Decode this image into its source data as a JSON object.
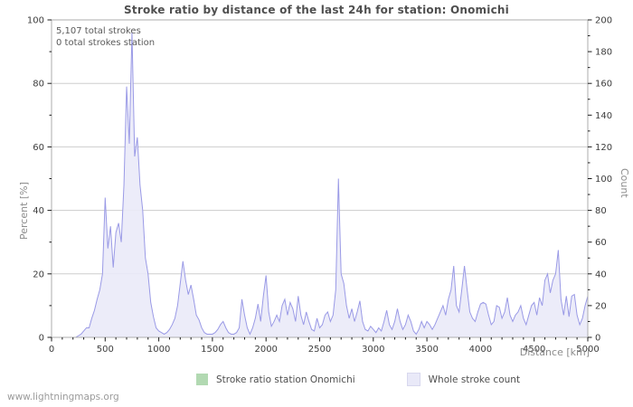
{
  "page": {
    "footer": "www.lightningmaps.org"
  },
  "chart_data": {
    "type": "area",
    "title": "Stroke ratio by distance of the last 24h for station: Onomichi",
    "annotations": {
      "total": "5,107 total strokes",
      "station": "0 total strokes station"
    },
    "colors": {
      "line": "#9a9ae6",
      "fill": "#eaeaf8",
      "grid": "#cdcdcd",
      "border": "#aeaeae",
      "tick": "#1a1a1a",
      "ratio_green": "#b2d9b2",
      "count_purple": "#e9e9f8"
    },
    "grid": "horizontal",
    "legend_position": "bottom",
    "x_axis": {
      "label": "Distance  [km]",
      "min": 0,
      "max": 5000,
      "major_ticks": [
        0,
        500,
        1000,
        1500,
        2000,
        2500,
        3000,
        3500,
        4000,
        4500,
        5000
      ],
      "minor_step": 100
    },
    "y_left": {
      "label": "Percent  [%]",
      "min": 0,
      "max": 100,
      "major_ticks": [
        0,
        20,
        40,
        60,
        80,
        100
      ],
      "minor_step": 10,
      "gridlines": [
        20,
        40,
        60,
        80
      ]
    },
    "y_right": {
      "label": "Count",
      "min": 0,
      "max": 200,
      "major_ticks": [
        0,
        20,
        40,
        60,
        80,
        100,
        120,
        140,
        160,
        180,
        200
      ],
      "minor_step": 10
    },
    "series": [
      {
        "name": "Stroke ratio station Onomichi",
        "axis": "left",
        "constant": 0
      },
      {
        "name": "Whole stroke count",
        "axis": "right",
        "x_start": 0,
        "x_step": 25,
        "counts": [
          0,
          0,
          0,
          0,
          0,
          0,
          0,
          0,
          0,
          0,
          1,
          2,
          4,
          6,
          6,
          12,
          17,
          24,
          30,
          40,
          88,
          56,
          70,
          44,
          66,
          72,
          60,
          96,
          158,
          122,
          192,
          114,
          126,
          96,
          80,
          50,
          40,
          22,
          13,
          6,
          4,
          3,
          2,
          3,
          5,
          8,
          12,
          20,
          34,
          48,
          36,
          27,
          33,
          24,
          14,
          11,
          6,
          3,
          2,
          2,
          2,
          3,
          5,
          8,
          10,
          6,
          3,
          2,
          2,
          3,
          6,
          24,
          14,
          6,
          2,
          6,
          12,
          21,
          10,
          26,
          39,
          16,
          7,
          10,
          14,
          10,
          20,
          24,
          14,
          22,
          18,
          10,
          26,
          14,
          8,
          16,
          10,
          5,
          4,
          12,
          6,
          8,
          14,
          16,
          10,
          14,
          30,
          100,
          40,
          34,
          20,
          12,
          18,
          10,
          16,
          23,
          10,
          5,
          4,
          7,
          5,
          3,
          6,
          4,
          10,
          17,
          8,
          5,
          10,
          18,
          10,
          5,
          8,
          14,
          10,
          4,
          2,
          5,
          10,
          6,
          10,
          8,
          5,
          8,
          12,
          16,
          20,
          14,
          24,
          30,
          45,
          20,
          16,
          30,
          45,
          30,
          16,
          12,
          10,
          16,
          21,
          22,
          21,
          14,
          8,
          10,
          20,
          19,
          12,
          16,
          25,
          14,
          10,
          14,
          16,
          20,
          12,
          8,
          14,
          20,
          22,
          14,
          25,
          20,
          36,
          40,
          28,
          36,
          40,
          55,
          24,
          14,
          26,
          13,
          26,
          27,
          14,
          8,
          12,
          20,
          26
        ]
      }
    ],
    "legend": [
      {
        "label": "Stroke ratio station Onomichi",
        "color": "#b2d9b2"
      },
      {
        "label": "Whole stroke count",
        "color": "#e9e9f8"
      }
    ]
  }
}
